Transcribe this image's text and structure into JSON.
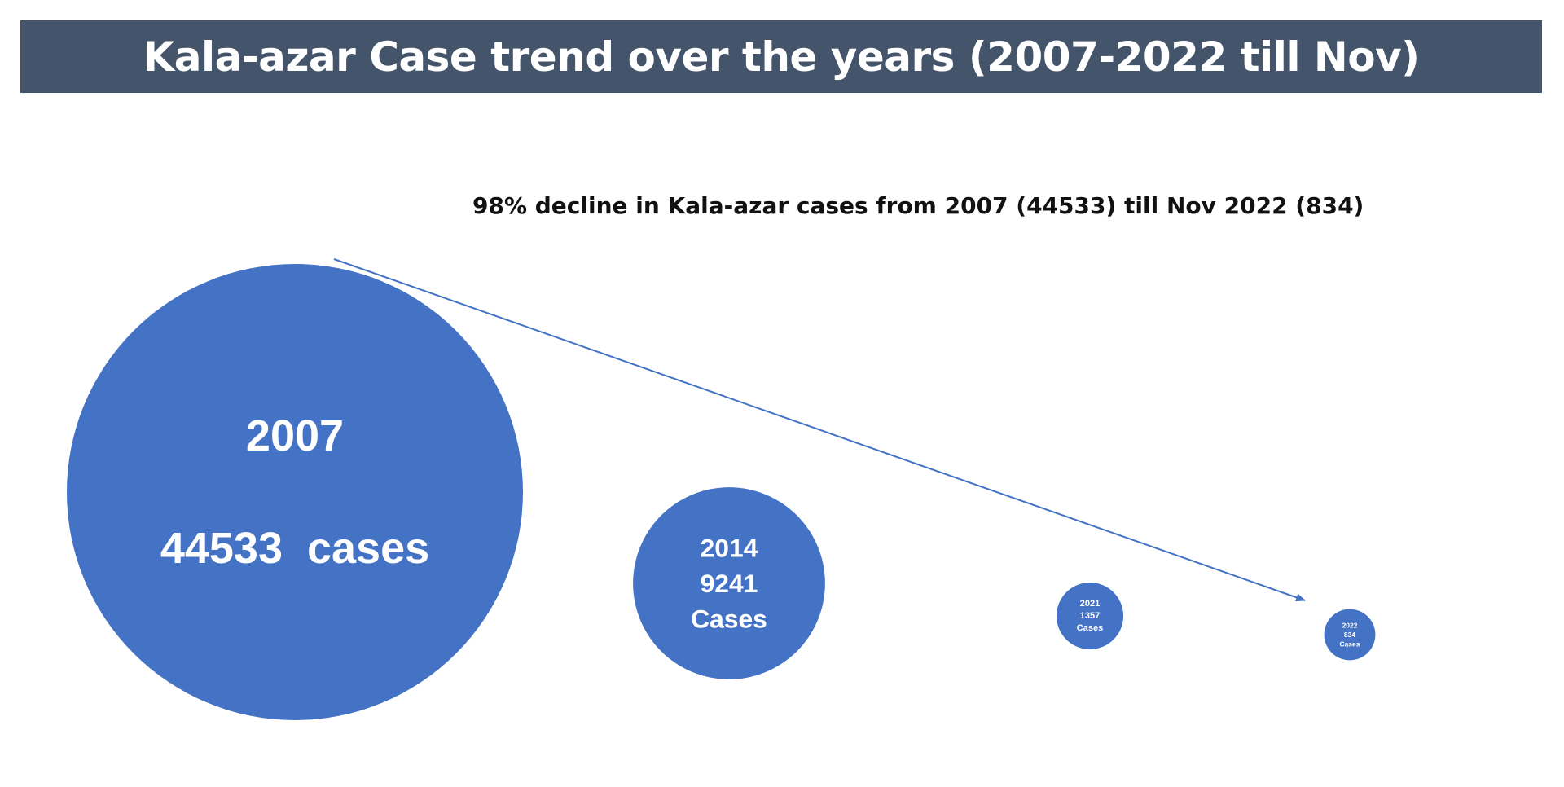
{
  "chart_data": {
    "type": "bubble",
    "title": "Kala-azar Case trend over the years (2007-2022 till Nov)",
    "subtitle": "98% decline in  Kala-azar cases from 2007 (44533) till Nov 2022 (834)",
    "bubble_color": "#4472c4",
    "arrow_color": "#4472c4",
    "points": [
      {
        "year": "2007",
        "cases": 44533,
        "value_label": "44533  cases"
      },
      {
        "year": "2014",
        "cases": 9241,
        "value_label": "9241",
        "unit_label": "Cases"
      },
      {
        "year": "2021",
        "cases": 1357,
        "value_label": "1357",
        "unit_label": "Cases"
      },
      {
        "year": "2022",
        "cases": 834,
        "value_label": "834",
        "unit_label": "Cases"
      }
    ]
  }
}
